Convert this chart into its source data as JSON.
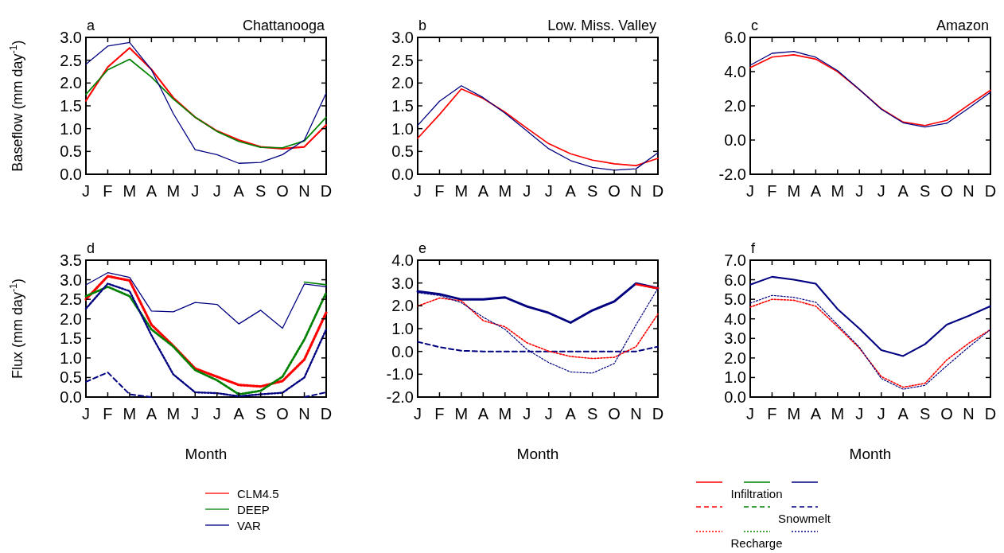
{
  "chart_data": [
    {
      "type": "line",
      "title": "Chattanooga",
      "annotations": [
        "a"
      ],
      "ylabel": "Baseflow (mm day$^{-1}$)",
      "categories": [
        "J",
        "F",
        "M",
        "A",
        "M",
        "J",
        "J",
        "A",
        "S",
        "O",
        "N",
        "D"
      ],
      "ylim": [
        0,
        3
      ],
      "yticks": [
        {
          "value": 0,
          "label": "0.0"
        },
        {
          "value": 0.5,
          "label": "0.5"
        },
        {
          "value": 1,
          "label": "1.0"
        },
        {
          "value": 1.5,
          "label": "1.5"
        },
        {
          "value": 2,
          "label": "2.0"
        },
        {
          "value": 2.5,
          "label": "2.5"
        },
        {
          "value": 3,
          "label": "3.0"
        }
      ],
      "legend": "bottom",
      "grid": false,
      "series": [
        {
          "name": "CLM4.5",
          "color": "#ff0000",
          "line_style": "solid",
          "values": [
            1.61,
            2.35,
            2.77,
            2.3,
            1.68,
            1.25,
            0.95,
            0.75,
            0.6,
            0.56,
            0.6,
            1.08
          ]
        },
        {
          "name": "DEEP",
          "color": "#008000",
          "line_style": "solid",
          "values": [
            1.75,
            2.29,
            2.52,
            2.13,
            1.65,
            1.25,
            0.94,
            0.72,
            0.59,
            0.58,
            0.73,
            1.25
          ]
        },
        {
          "name": "VAR",
          "color": "#000080",
          "line_style": "solid",
          "values": [
            2.41,
            2.81,
            2.89,
            2.29,
            1.33,
            0.54,
            0.43,
            0.24,
            0.26,
            0.43,
            0.75,
            1.78
          ]
        }
      ]
    },
    {
      "type": "line",
      "title": "Low. Miss. Valley",
      "annotations": [
        "b"
      ],
      "categories": [
        "J",
        "F",
        "M",
        "A",
        "M",
        "J",
        "J",
        "A",
        "S",
        "O",
        "N",
        "D"
      ],
      "ylim": [
        0,
        3
      ],
      "yticks": [
        {
          "value": 0,
          "label": "0.0"
        },
        {
          "value": 0.5,
          "label": "0.5"
        },
        {
          "value": 1,
          "label": "1.0"
        },
        {
          "value": 1.5,
          "label": "1.5"
        },
        {
          "value": 2,
          "label": "2.0"
        },
        {
          "value": 2.5,
          "label": "2.5"
        },
        {
          "value": 3,
          "label": "3.0"
        }
      ],
      "grid": false,
      "series": [
        {
          "color": "#ff0000",
          "line_style": "solid",
          "values": [
            0.79,
            1.31,
            1.87,
            1.66,
            1.36,
            1.01,
            0.67,
            0.45,
            0.31,
            0.23,
            0.19,
            0.35
          ]
        },
        {
          "color": "#000080",
          "line_style": "solid",
          "values": [
            1.07,
            1.6,
            1.94,
            1.68,
            1.34,
            0.95,
            0.56,
            0.3,
            0.15,
            0.09,
            0.12,
            0.47
          ]
        }
      ]
    },
    {
      "type": "line",
      "title": "Amazon",
      "annotations": [
        "c"
      ],
      "categories": [
        "J",
        "F",
        "M",
        "A",
        "M",
        "J",
        "J",
        "A",
        "S",
        "O",
        "N",
        "D"
      ],
      "ylim": [
        -2,
        6
      ],
      "yticks": [
        {
          "value": -2,
          "label": "-2.0"
        },
        {
          "value": 0,
          "label": "0.0"
        },
        {
          "value": 2,
          "label": "2.0"
        },
        {
          "value": 4,
          "label": "4.0"
        },
        {
          "value": 6,
          "label": "6.0"
        }
      ],
      "grid": false,
      "series": [
        {
          "color": "#ff0000",
          "line_style": "solid",
          "values": [
            4.23,
            4.85,
            4.98,
            4.73,
            4.0,
            2.95,
            1.83,
            1.05,
            0.85,
            1.15,
            2.05,
            2.91
          ]
        },
        {
          "color": "#000080",
          "line_style": "solid",
          "values": [
            4.37,
            5.07,
            5.18,
            4.84,
            4.06,
            2.95,
            1.8,
            1.01,
            0.76,
            0.98,
            1.86,
            2.79
          ]
        }
      ]
    },
    {
      "type": "line",
      "annotations": [
        "d"
      ],
      "ylabel": "Flux (mm day$^{-1}$)",
      "xlabel": "Month",
      "categories": [
        "J",
        "F",
        "M",
        "A",
        "M",
        "J",
        "J",
        "A",
        "S",
        "O",
        "N",
        "D"
      ],
      "ylim": [
        0,
        3.5
      ],
      "yticks": [
        {
          "value": 0,
          "label": "0.0"
        },
        {
          "value": 0.5,
          "label": "0.5"
        },
        {
          "value": 1,
          "label": "1.0"
        },
        {
          "value": 1.5,
          "label": "1.5"
        },
        {
          "value": 2,
          "label": "2.0"
        },
        {
          "value": 2.5,
          "label": "2.5"
        },
        {
          "value": 3,
          "label": "3.0"
        },
        {
          "value": 3.5,
          "label": "3.5"
        }
      ],
      "legend": "bottom right",
      "grid": false,
      "series": [
        {
          "color": "#ff0000",
          "line_style": "dotted",
          "values": [
            2.5,
            3.09,
            2.98,
            1.85,
            1.31,
            0.73,
            0.52,
            0.31,
            0.27,
            0.41,
            0.96,
            2.16
          ]
        },
        {
          "name": "Recharge",
          "color": "#008000",
          "line_style": "dotted",
          "values": [
            2.58,
            2.82,
            2.58,
            1.73,
            1.29,
            0.69,
            0.43,
            0.07,
            0.16,
            0.52,
            1.47,
            2.67
          ]
        },
        {
          "color": "#000080",
          "line_style": "dotted",
          "values": [
            2.26,
            2.9,
            2.71,
            1.58,
            0.58,
            0.12,
            0.1,
            0.02,
            0.07,
            0.11,
            0.5,
            1.73
          ]
        },
        {
          "name": "Snowmelt",
          "color": "#000080",
          "line_style": "dashed",
          "values": [
            0.39,
            0.63,
            0.07,
            0,
            null,
            null,
            null,
            null,
            null,
            null,
            0,
            0.12
          ]
        },
        {
          "name": "Infiltration",
          "color": "#008000",
          "line_style": "solid",
          "values": [
            null,
            null,
            null,
            null,
            null,
            null,
            null,
            null,
            null,
            null,
            2.94,
            2.87
          ]
        },
        {
          "color": "#000080",
          "line_style": "solid",
          "values": [
            2.87,
            3.18,
            3.06,
            2.2,
            2.18,
            2.42,
            2.37,
            1.87,
            2.22,
            1.76,
            2.89,
            2.82
          ]
        }
      ]
    },
    {
      "type": "line",
      "annotations": [
        "e"
      ],
      "xlabel": "Month",
      "categories": [
        "J",
        "F",
        "M",
        "A",
        "M",
        "J",
        "J",
        "A",
        "S",
        "O",
        "N",
        "D"
      ],
      "ylim": [
        -2,
        4
      ],
      "yticks": [
        {
          "value": -2,
          "label": "-2.0"
        },
        {
          "value": -1,
          "label": "-1.0"
        },
        {
          "value": 0,
          "label": "0.0"
        },
        {
          "value": 1,
          "label": "1.0"
        },
        {
          "value": 2,
          "label": "2.0"
        },
        {
          "value": 3,
          "label": "3.0"
        },
        {
          "value": 4,
          "label": "4.0"
        }
      ],
      "grid": false,
      "series": [
        {
          "color": "#000080",
          "line_style": "solid",
          "values": [
            2.63,
            2.51,
            2.28,
            2.28,
            2.37,
            1.97,
            1.69,
            1.26,
            1.8,
            2.19,
            2.98,
            2.77
          ]
        },
        {
          "color": "#ff0000",
          "line_style": "solid",
          "values": [
            null,
            null,
            null,
            null,
            null,
            null,
            null,
            null,
            null,
            null,
            2.94,
            2.76
          ]
        },
        {
          "color": "#000080",
          "line_style": "dashed",
          "values": [
            0.42,
            0.19,
            0.03,
            0,
            0,
            0,
            0,
            0,
            0,
            0,
            0,
            0.21
          ]
        },
        {
          "color": "#ff0000",
          "line_style": "dotted",
          "values": [
            1.99,
            2.34,
            2.22,
            1.35,
            1.08,
            0.38,
            0.01,
            -0.22,
            -0.31,
            -0.26,
            0.21,
            1.64
          ]
        },
        {
          "color": "#000080",
          "line_style": "dotted",
          "values": [
            2.57,
            2.45,
            2.14,
            1.5,
            0.97,
            0.09,
            -0.49,
            -0.9,
            -0.95,
            -0.53,
            1.17,
            2.77
          ]
        }
      ]
    },
    {
      "type": "line",
      "annotations": [
        "f"
      ],
      "xlabel": "Month",
      "categories": [
        "J",
        "F",
        "M",
        "A",
        "M",
        "J",
        "J",
        "A",
        "S",
        "O",
        "N",
        "D"
      ],
      "ylim": [
        0,
        7
      ],
      "yticks": [
        {
          "value": 0,
          "label": "0.0"
        },
        {
          "value": 1,
          "label": "1.0"
        },
        {
          "value": 2,
          "label": "2.0"
        },
        {
          "value": 3,
          "label": "3.0"
        },
        {
          "value": 4,
          "label": "4.0"
        },
        {
          "value": 5,
          "label": "5.0"
        },
        {
          "value": 6,
          "label": "6.0"
        },
        {
          "value": 7,
          "label": "7.0"
        }
      ],
      "grid": false,
      "series": [
        {
          "color": "#000080",
          "line_style": "solid",
          "values": [
            5.75,
            6.15,
            6.0,
            5.8,
            4.5,
            3.5,
            2.4,
            2.1,
            2.7,
            3.7,
            4.15,
            4.65
          ]
        },
        {
          "color": "#ff0000",
          "line_style": "dotted",
          "values": [
            4.6,
            5.0,
            4.95,
            4.65,
            3.6,
            2.5,
            1.05,
            0.5,
            0.7,
            1.9,
            2.75,
            3.45
          ]
        },
        {
          "color": "#000080",
          "line_style": "dotted",
          "values": [
            4.8,
            5.2,
            5.1,
            4.85,
            3.7,
            2.55,
            0.95,
            0.4,
            0.6,
            1.6,
            2.55,
            3.45
          ]
        }
      ]
    }
  ]
}
